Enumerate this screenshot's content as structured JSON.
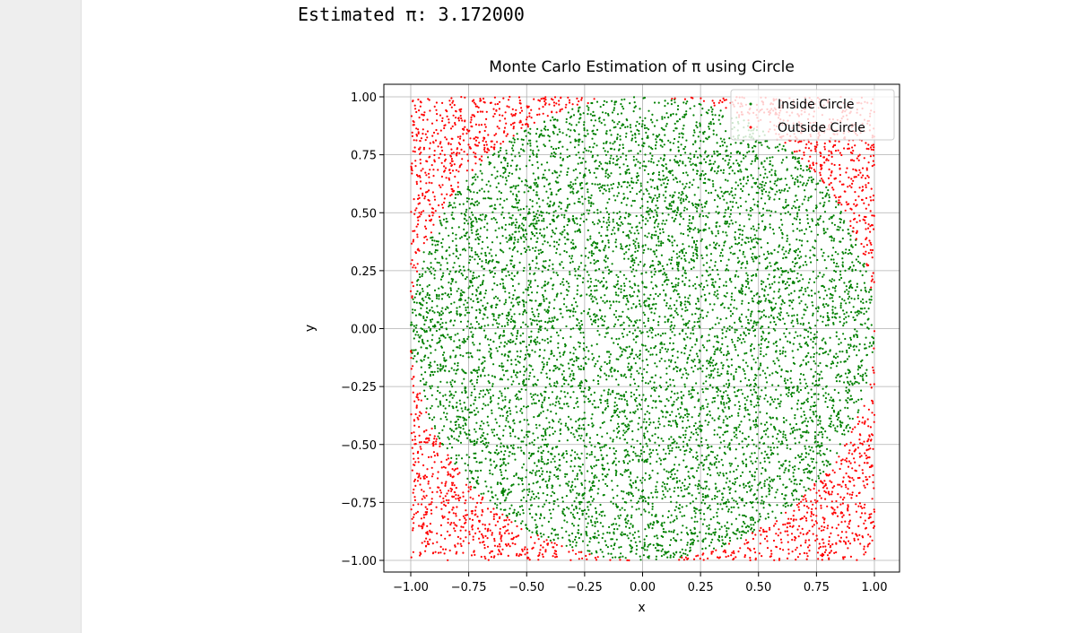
{
  "output": {
    "text": "Estimated π: 3.172000"
  },
  "chart_data": {
    "type": "scatter",
    "title": "Monte Carlo Estimation of π using Circle",
    "xlabel": "x",
    "ylabel": "y",
    "xlim": [
      -1.0,
      1.0
    ],
    "ylim": [
      -1.0,
      1.0
    ],
    "x_ticks": [
      "−1.00",
      "−0.75",
      "−0.50",
      "−0.25",
      "0.00",
      "0.25",
      "0.50",
      "0.75",
      "1.00"
    ],
    "y_ticks": [
      "1.00",
      "0.75",
      "0.50",
      "0.25",
      "0.00",
      "−0.25",
      "−0.50",
      "−0.75",
      "−1.00"
    ],
    "x_tick_values": [
      -1.0,
      -0.75,
      -0.5,
      -0.25,
      0.0,
      0.25,
      0.5,
      0.75,
      1.0
    ],
    "y_tick_values": [
      1.0,
      0.75,
      0.5,
      0.25,
      0.0,
      -0.25,
      -0.5,
      -0.75,
      -1.0
    ],
    "grid": true,
    "legend_position": "top-right",
    "sample_count_approx": 10000,
    "estimated_pi": 3.172,
    "series": [
      {
        "name": "Inside Circle",
        "color": "#008000",
        "region": "x^2 + y^2 <= 1",
        "sample_points": [
          [
            0.0,
            0.0
          ],
          [
            0.5,
            0.5
          ],
          [
            -0.5,
            -0.5
          ],
          [
            0.25,
            -0.75
          ],
          [
            -0.75,
            0.25
          ]
        ]
      },
      {
        "name": "Outside Circle",
        "color": "#ff0000",
        "region": "x^2 + y^2 > 1",
        "sample_points": [
          [
            0.9,
            0.9
          ],
          [
            -0.9,
            0.9
          ],
          [
            0.9,
            -0.9
          ],
          [
            -0.9,
            -0.9
          ]
        ]
      }
    ]
  }
}
